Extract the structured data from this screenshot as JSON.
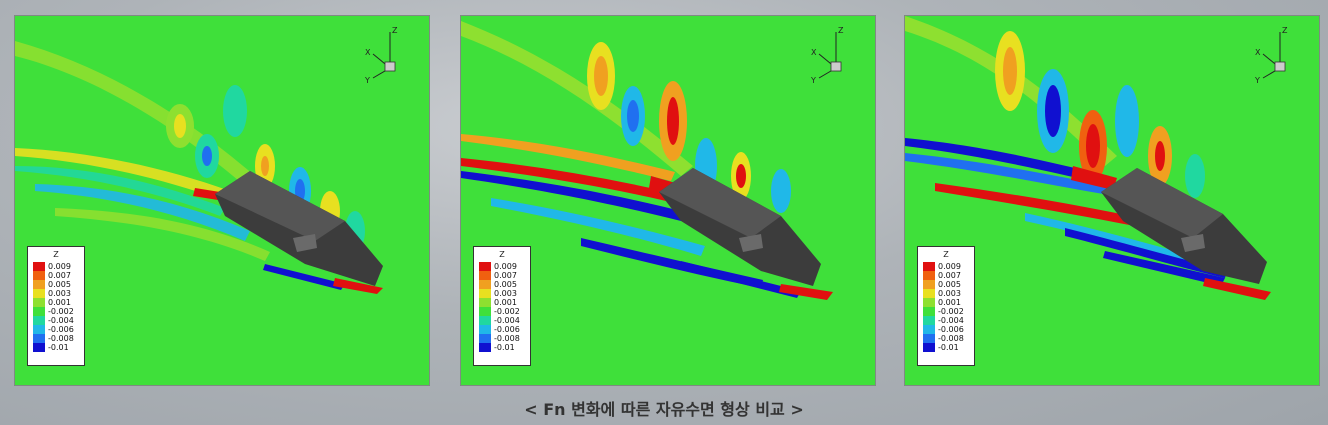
{
  "caption": "< Fn 변화에 따른 자유수면 형상 비교 >",
  "panels": [
    {
      "legend": {
        "title": "Z",
        "levels": [
          "0.009",
          "0.007",
          "0.005",
          "0.003",
          "0.001",
          "-0.002",
          "-0.004",
          "-0.006",
          "-0.008",
          "-0.01"
        ]
      },
      "axes": {
        "x": "X",
        "y": "Y",
        "z": "Z"
      }
    },
    {
      "legend": {
        "title": "Z",
        "levels": [
          "0.009",
          "0.007",
          "0.005",
          "0.003",
          "0.001",
          "-0.002",
          "-0.004",
          "-0.006",
          "-0.008",
          "-0.01"
        ]
      },
      "axes": {
        "x": "X",
        "y": "Y",
        "z": "Z"
      }
    },
    {
      "legend": {
        "title": "Z",
        "levels": [
          "0.009",
          "0.007",
          "0.005",
          "0.003",
          "0.001",
          "-0.002",
          "-0.004",
          "-0.006",
          "-0.008",
          "-0.01"
        ]
      },
      "axes": {
        "x": "X",
        "y": "Y",
        "z": "Z"
      }
    }
  ],
  "legend_colors": [
    "#e01010",
    "#f06010",
    "#f0a020",
    "#e8e020",
    "#8ee030",
    "#3fe03a",
    "#20d8a0",
    "#20b8e8",
    "#2070f0",
    "#1010d0"
  ]
}
